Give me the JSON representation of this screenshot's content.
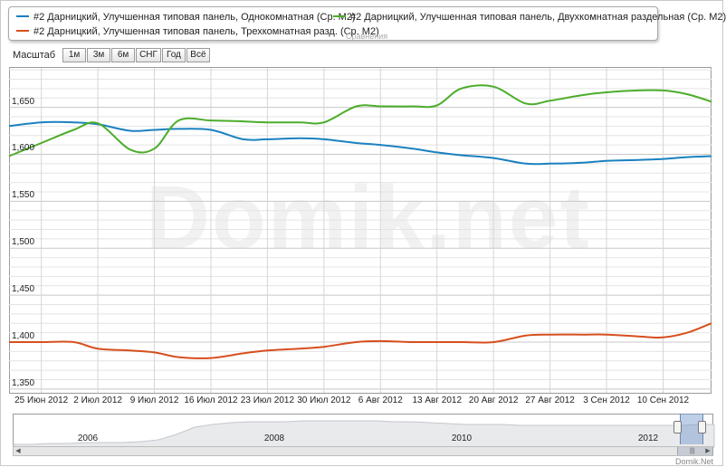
{
  "legend": {
    "items": [
      {
        "label": "#2 Дарницкий, Улучшенная типовая панель, Однокомнатная (Ср. М2)",
        "color": "#1b81c0"
      },
      {
        "label": "#2 Дарницкий, Улучшенная типовая панель, Двухкомнатная раздельная (Ср. М2)",
        "color": "#4cad2b"
      },
      {
        "label": "#2 Дарницкий, Улучшенная типовая панель, Трехкомнатная разд. (Ср. М2)",
        "color": "#d64f1e"
      }
    ],
    "mini_text": "Сравнения"
  },
  "zoom": {
    "label": "Масштаб",
    "buttons": [
      "1м",
      "3м",
      "6м",
      "СНГ",
      "Год",
      "Всё"
    ]
  },
  "watermark": "Domik.net",
  "navigator": {
    "years": [
      "2006",
      "2008",
      "2010",
      "2012"
    ]
  },
  "credit": "Domik.Net",
  "chart_data": {
    "type": "line",
    "x": [
      "2012-06-21",
      "2012-06-25",
      "2012-06-29",
      "2012-07-02",
      "2012-07-06",
      "2012-07-09",
      "2012-07-12",
      "2012-07-16",
      "2012-07-20",
      "2012-07-23",
      "2012-07-27",
      "2012-07-30",
      "2012-08-03",
      "2012-08-06",
      "2012-08-10",
      "2012-08-13",
      "2012-08-16",
      "2012-08-20",
      "2012-08-24",
      "2012-08-27",
      "2012-08-31",
      "2012-09-03",
      "2012-09-07",
      "2012-09-10",
      "2012-09-13",
      "2012-09-16"
    ],
    "series": [
      {
        "name": "#2 Дарницкий, Улучшенная типовая панель, Однокомнатная (Ср. М2)",
        "color": "#1b81c0",
        "values": [
          1630,
          1634,
          1634,
          1632,
          1625,
          1626,
          1627,
          1626,
          1616,
          1616,
          1617,
          1616,
          1612,
          1610,
          1606,
          1602,
          1599,
          1596,
          1590,
          1590,
          1591,
          1593,
          1594,
          1595,
          1597,
          1598
        ]
      },
      {
        "name": "#2 Дарницкий, Улучшенная типовая панель, Двухкомнатная раздельная (Ср. М2)",
        "color": "#4cad2b",
        "values": [
          1598,
          1612,
          1626,
          1633,
          1605,
          1606,
          1636,
          1636,
          1635,
          1634,
          1634,
          1634,
          1651,
          1651,
          1651,
          1652,
          1670,
          1672,
          1654,
          1657,
          1663,
          1666,
          1668,
          1668,
          1664,
          1656
        ]
      },
      {
        "name": "#2 Дарницкий, Улучшенная типовая панель, Трехкомнатная разд. (Ср. М2)",
        "color": "#d64f1e",
        "values": [
          1400,
          1400,
          1400,
          1393,
          1391,
          1389,
          1384,
          1383,
          1388,
          1391,
          1393,
          1395,
          1400,
          1401,
          1400,
          1400,
          1400,
          1400,
          1407,
          1408,
          1408,
          1408,
          1406,
          1405,
          1410,
          1420
        ]
      }
    ],
    "xticks": [
      {
        "x": "2012-06-25",
        "label": "25 Июн 2012"
      },
      {
        "x": "2012-07-02",
        "label": "2 Июл 2012"
      },
      {
        "x": "2012-07-09",
        "label": "9 Июл 2012"
      },
      {
        "x": "2012-07-16",
        "label": "16 Июл 2012"
      },
      {
        "x": "2012-07-23",
        "label": "23 Июл 2012"
      },
      {
        "x": "2012-07-30",
        "label": "30 Июл 2012"
      },
      {
        "x": "2012-08-06",
        "label": "6 Авг 2012"
      },
      {
        "x": "2012-08-13",
        "label": "13 Авг 2012"
      },
      {
        "x": "2012-08-20",
        "label": "20 Авг 2012"
      },
      {
        "x": "2012-08-27",
        "label": "27 Авг 2012"
      },
      {
        "x": "2012-09-03",
        "label": "3 Сен 2012"
      },
      {
        "x": "2012-09-10",
        "label": "10 Сен 2012"
      }
    ],
    "yticks": [
      {
        "value": 1350,
        "label": "1,350"
      },
      {
        "value": 1400,
        "label": "1,400"
      },
      {
        "value": 1450,
        "label": "1,450"
      },
      {
        "value": 1500,
        "label": "1,500"
      },
      {
        "value": 1550,
        "label": "1,550"
      },
      {
        "value": 1600,
        "label": "1,600"
      },
      {
        "value": 1650,
        "label": "1,650"
      }
    ],
    "ylim": [
      1346,
      1692
    ],
    "xlim": [
      "2012-06-21",
      "2012-09-16"
    ],
    "minor_grid_step": 10,
    "grid": true,
    "legend_position": "top"
  }
}
